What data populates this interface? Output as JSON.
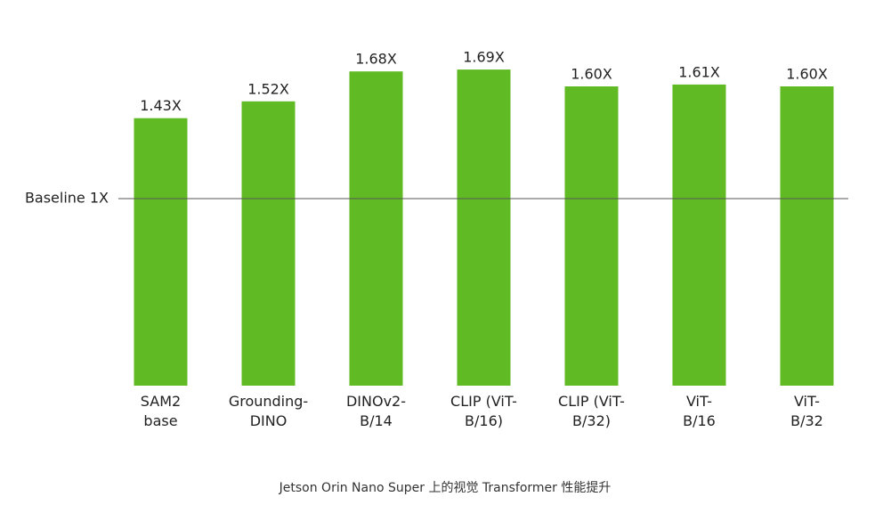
{
  "chart_data": {
    "type": "bar",
    "title": "Jetson Orin Nano Super 上的视觉 Transformer 性能提升",
    "categories": [
      "SAM2\nbase",
      "Grounding-\nDINO",
      "DINOv2-\nB/14",
      "CLIP (ViT-\nB/16)",
      "CLIP (ViT-\nB/32)",
      "ViT-\nB/16",
      "ViT-\nB/32"
    ],
    "values": [
      1.43,
      1.52,
      1.68,
      1.69,
      1.6,
      1.61,
      1.6
    ],
    "value_labels": [
      "1.43X",
      "1.52X",
      "1.68X",
      "1.69X",
      "1.60X",
      "1.61X",
      "1.60X"
    ],
    "color": "#5fba23",
    "ylim": [
      0,
      2
    ],
    "yticks": [
      {
        "value": 1,
        "label": "Baseline 1X"
      }
    ]
  }
}
